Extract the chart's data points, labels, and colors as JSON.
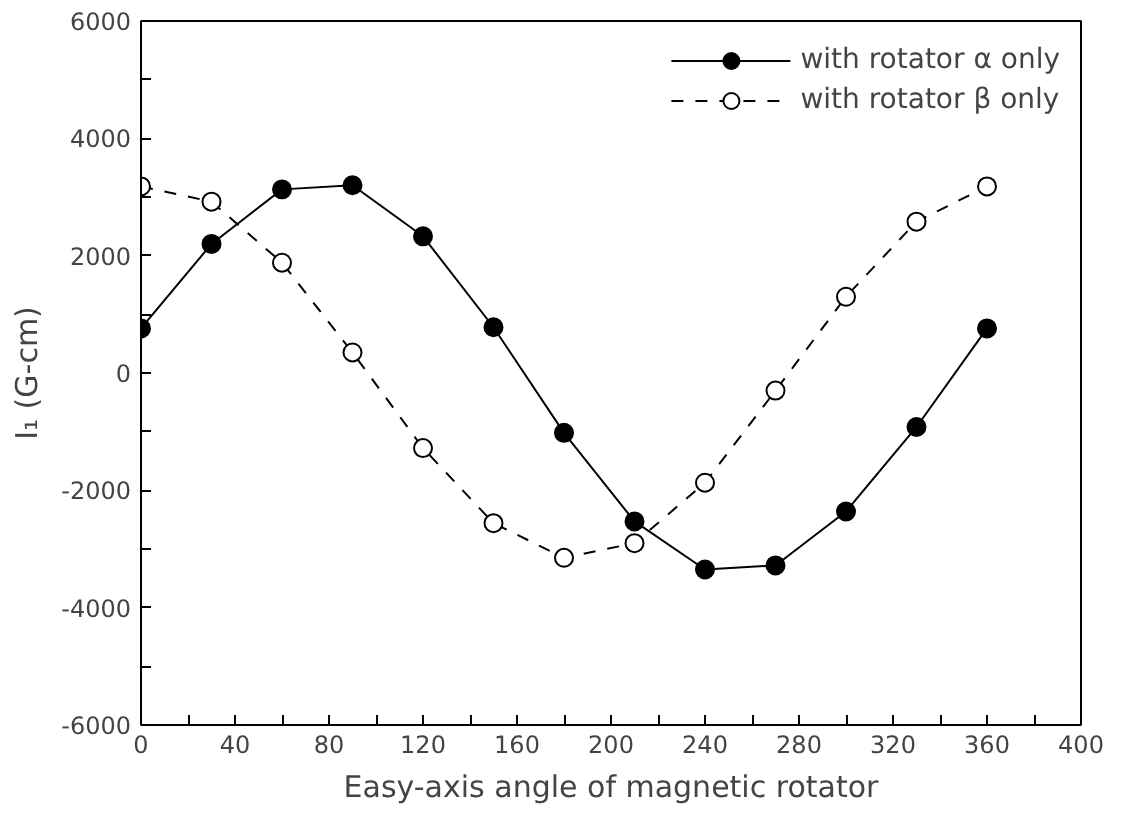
{
  "chart_data": {
    "type": "line",
    "xlabel": "Easy-axis angle of magnetic rotator",
    "ylabel": "I₁ (G-cm)",
    "x": [
      0,
      30,
      60,
      90,
      120,
      150,
      180,
      210,
      240,
      270,
      300,
      330,
      360
    ],
    "series": [
      {
        "name": "with rotator α only",
        "color": "#000000",
        "marker": "circle",
        "line_style": "solid",
        "values": [
          760,
          2200,
          3130,
          3200,
          2330,
          780,
          -1020,
          -2530,
          -3350,
          -3280,
          -2360,
          -920,
          760
        ]
      },
      {
        "name": "with rotator β only",
        "color": "#000000",
        "marker": "circle",
        "line_style": "dashed",
        "values": [
          3180,
          2920,
          1880,
          350,
          -1280,
          -2560,
          -3150,
          -2900,
          -1870,
          -300,
          1300,
          2580,
          3180
        ]
      }
    ],
    "xlim": [
      0,
      400
    ],
    "ylim": [
      -6000,
      6000
    ],
    "xticks": [
      0,
      {
        "value": 20,
        "label": null
      },
      40,
      {
        "value": 60,
        "label": null
      },
      80,
      {
        "value": 100,
        "label": null
      },
      120,
      {
        "value": 140,
        "label": null
      },
      160,
      {
        "value": 180,
        "label": null
      },
      200,
      {
        "value": 220,
        "label": null
      },
      240,
      {
        "value": 260,
        "label": null
      },
      280,
      {
        "value": 300,
        "label": null
      },
      320,
      {
        "value": 340,
        "label": null
      },
      360,
      {
        "value": 380,
        "label": null
      },
      400
    ],
    "yticks": [
      -6000,
      {
        "value": -5000,
        "label": null
      },
      -4000,
      {
        "value": -3000,
        "label": null
      },
      -2000,
      {
        "value": -1000,
        "label": null
      },
      0,
      {
        "value": 1000,
        "label": null
      },
      2000,
      {
        "value": 3000,
        "label": null
      },
      4000,
      {
        "value": 5000,
        "label": null
      },
      6000
    ],
    "grid": false,
    "legend": "top right"
  }
}
